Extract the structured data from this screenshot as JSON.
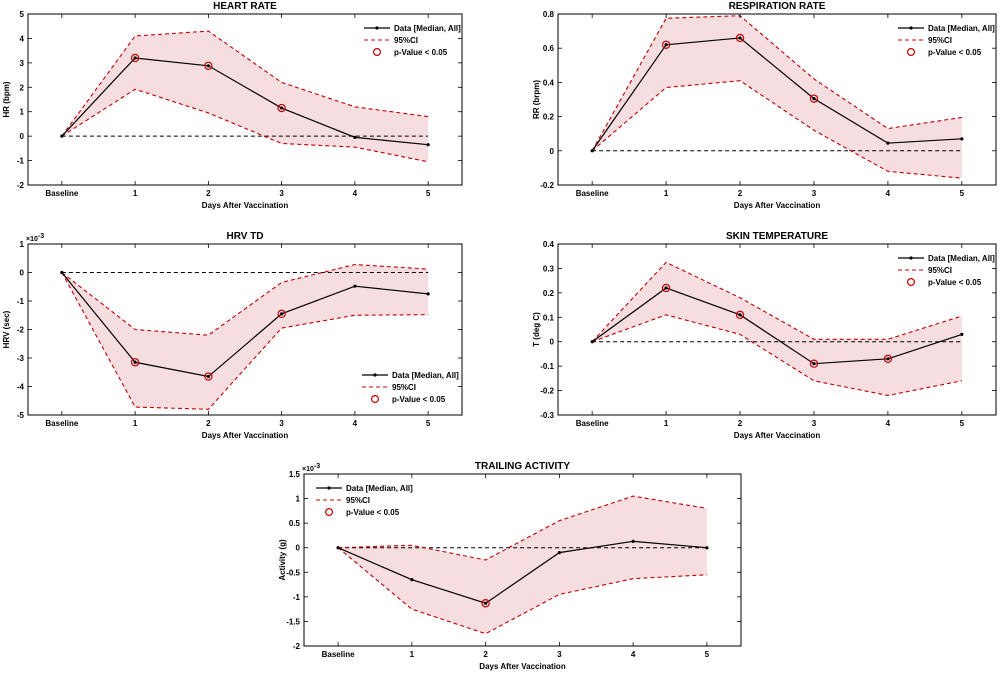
{
  "colors": {
    "data_line": "#000000",
    "ci_line": "#c00000",
    "ci_fill": "#f6dde0",
    "zero_line": "#000000",
    "marker": "#c00000"
  },
  "chart_data": [
    {
      "type": "line",
      "title": "HEART RATE",
      "xlabel": "Days After Vaccination",
      "ylabel": "HR (bpm)",
      "exponent": "",
      "categories": [
        "Baseline",
        "1",
        "2",
        "3",
        "4",
        "5"
      ],
      "ylim": [
        -2,
        5
      ],
      "yticks": [
        -2,
        -1,
        0,
        1,
        2,
        3,
        4,
        5
      ],
      "ytick_labels": [
        "-2",
        "-1",
        "0",
        "1",
        "2",
        "3",
        "4",
        "5"
      ],
      "legend_position": "top-right",
      "legend": [
        "Data [Median, All]",
        "95%CI",
        "p-Value < 0.05"
      ],
      "series": [
        {
          "name": "Data [Median, All]",
          "values": [
            0,
            3.2,
            2.88,
            1.15,
            -0.05,
            -0.35
          ]
        },
        {
          "name": "95%CI upper",
          "values": [
            0,
            4.1,
            4.3,
            2.2,
            1.2,
            0.8
          ]
        },
        {
          "name": "95%CI lower",
          "values": [
            0,
            1.92,
            0.95,
            -0.3,
            -0.45,
            -1.05
          ]
        }
      ],
      "significant": [
        1,
        2,
        3
      ]
    },
    {
      "type": "line",
      "title": "RESPIRATION RATE",
      "xlabel": "Days After Vaccination",
      "ylabel": "RR (brpm)",
      "exponent": "",
      "categories": [
        "Baseline",
        "1",
        "2",
        "3",
        "4",
        "5"
      ],
      "ylim": [
        -0.2,
        0.8
      ],
      "yticks": [
        -0.2,
        0,
        0.2,
        0.4,
        0.6,
        0.8
      ],
      "ytick_labels": [
        "-0.2",
        "0",
        "0.2",
        "0.4",
        "0.6",
        "0.8"
      ],
      "legend_position": "top-right",
      "legend": [
        "Data [Median, All]",
        "95%CI",
        "p-Value < 0.05"
      ],
      "series": [
        {
          "name": "Data [Median, All]",
          "values": [
            0,
            0.62,
            0.66,
            0.305,
            0.045,
            0.07
          ]
        },
        {
          "name": "95%CI upper",
          "values": [
            0,
            0.775,
            0.79,
            0.42,
            0.13,
            0.195
          ]
        },
        {
          "name": "95%CI lower",
          "values": [
            0,
            0.37,
            0.41,
            0.12,
            -0.12,
            -0.16
          ]
        }
      ],
      "significant": [
        1,
        2,
        3
      ]
    },
    {
      "type": "line",
      "title": "HRV TD",
      "xlabel": "Days After Vaccination",
      "ylabel": "HRV (sec)",
      "exponent": "-3",
      "categories": [
        "Baseline",
        "1",
        "2",
        "3",
        "4",
        "5"
      ],
      "ylim": [
        -5,
        1
      ],
      "yticks": [
        -5,
        -4,
        -3,
        -2,
        -1,
        0,
        1
      ],
      "ytick_labels": [
        "-5",
        "-4",
        "-3",
        "-2",
        "-1",
        "0",
        "1"
      ],
      "legend_position": "bottom-right",
      "legend": [
        "Data [Median, All]",
        "95%CI",
        "p-Value < 0.05"
      ],
      "series": [
        {
          "name": "Data [Median, All]",
          "values": [
            0,
            -3.15,
            -3.65,
            -1.45,
            -0.48,
            -0.75
          ]
        },
        {
          "name": "95%CI upper",
          "values": [
            0,
            -2.0,
            -2.2,
            -0.35,
            0.28,
            0.12
          ]
        },
        {
          "name": "95%CI lower",
          "values": [
            0,
            -4.72,
            -4.8,
            -1.95,
            -1.5,
            -1.48
          ]
        }
      ],
      "significant": [
        1,
        2,
        3
      ]
    },
    {
      "type": "line",
      "title": "SKIN TEMPERATURE",
      "xlabel": "Days After Vaccination",
      "ylabel": "T (deg C)",
      "exponent": "",
      "categories": [
        "Baseline",
        "1",
        "2",
        "3",
        "4",
        "5"
      ],
      "ylim": [
        -0.3,
        0.4
      ],
      "yticks": [
        -0.3,
        -0.2,
        -0.1,
        0,
        0.1,
        0.2,
        0.3,
        0.4
      ],
      "ytick_labels": [
        "-0.3",
        "-0.2",
        "-0.1",
        "0",
        "0.1",
        "0.2",
        "0.3",
        "0.4"
      ],
      "legend_position": "top-right",
      "legend": [
        "Data [Median, All]",
        "95%CI",
        "p-Value < 0.05"
      ],
      "series": [
        {
          "name": "Data [Median, All]",
          "values": [
            0,
            0.22,
            0.11,
            -0.09,
            -0.07,
            0.03
          ]
        },
        {
          "name": "95%CI upper",
          "values": [
            0,
            0.325,
            0.18,
            0.01,
            0.01,
            0.105
          ]
        },
        {
          "name": "95%CI lower",
          "values": [
            0,
            0.11,
            0.03,
            -0.16,
            -0.22,
            -0.16
          ]
        }
      ],
      "significant": [
        1,
        2,
        3,
        4
      ]
    },
    {
      "type": "line",
      "title": "TRAILING ACTIVITY",
      "xlabel": "Days After Vaccination",
      "ylabel": "Activity (g)",
      "exponent": "-3",
      "categories": [
        "Baseline",
        "1",
        "2",
        "3",
        "4",
        "5"
      ],
      "ylim": [
        -2,
        1.5
      ],
      "yticks": [
        -2,
        -1.5,
        -1,
        -0.5,
        0,
        0.5,
        1,
        1.5
      ],
      "ytick_labels": [
        "-2",
        "-1.5",
        "-1",
        "-0.5",
        "0",
        "0.5",
        "1",
        "1.5"
      ],
      "legend_position": "top-left",
      "legend": [
        "Data [Median, All]",
        "95%CI",
        "p-Value < 0.05"
      ],
      "series": [
        {
          "name": "Data [Median, All]",
          "values": [
            0,
            -0.65,
            -1.13,
            -0.1,
            0.13,
            0
          ]
        },
        {
          "name": "95%CI upper",
          "values": [
            0,
            0.05,
            -0.25,
            0.55,
            1.05,
            0.8
          ]
        },
        {
          "name": "95%CI lower",
          "values": [
            0,
            -1.25,
            -1.75,
            -0.95,
            -0.63,
            -0.55
          ]
        }
      ],
      "significant": [
        2
      ]
    }
  ]
}
